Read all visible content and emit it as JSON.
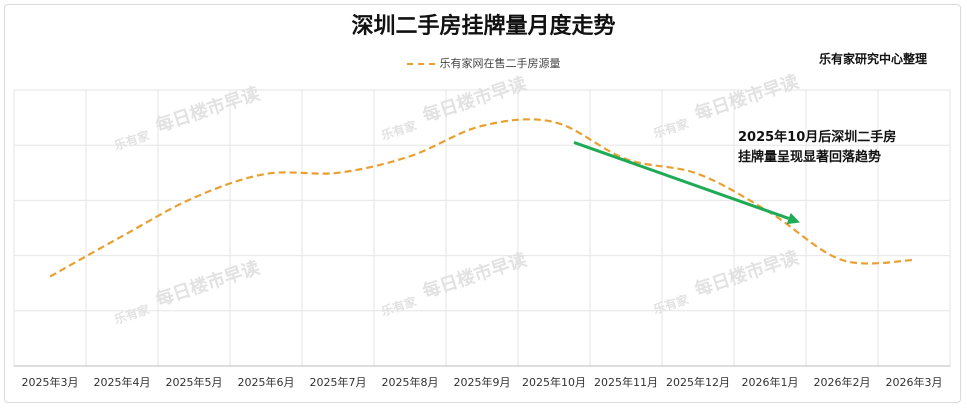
{
  "title": "深圳二手房挂牌量月度走势",
  "source": "乐有家研究中心整理",
  "annotation": "2025年10月后深圳二手房\n挂牌量呈现显著回落趋势",
  "watermark": {
    "text": "每日楼市早读",
    "logo": "乐有家"
  },
  "colors": {
    "series": "#e9a030",
    "arrow": "#1fab55",
    "grid": "#e6e6e6"
  },
  "chart_data": {
    "type": "line",
    "title": "深圳二手房挂牌量月度走势",
    "x": [
      "2025年3月",
      "2025年4月",
      "2025年5月",
      "2025年6月",
      "2025年7月",
      "2025年8月",
      "2025年9月",
      "2025年10月",
      "2025年11月",
      "2025年12月",
      "2026年1月",
      "2026年2月",
      "2026年3月"
    ],
    "series": [
      {
        "name": "乐有家网在售二手房源量",
        "style": "dashed",
        "values": [
          1.62,
          2.35,
          3.05,
          3.48,
          3.5,
          3.8,
          4.35,
          4.42,
          3.75,
          3.48,
          2.78,
          1.92,
          1.92
        ]
      }
    ],
    "ylim": [
      0,
      5
    ],
    "y_tick_labels": "none",
    "grid": true,
    "legend": "top-center",
    "annotation_arrow": {
      "from_x": "2025年10月",
      "to_x": "2026年1月",
      "direction": "down",
      "color": "#1fab55"
    }
  }
}
